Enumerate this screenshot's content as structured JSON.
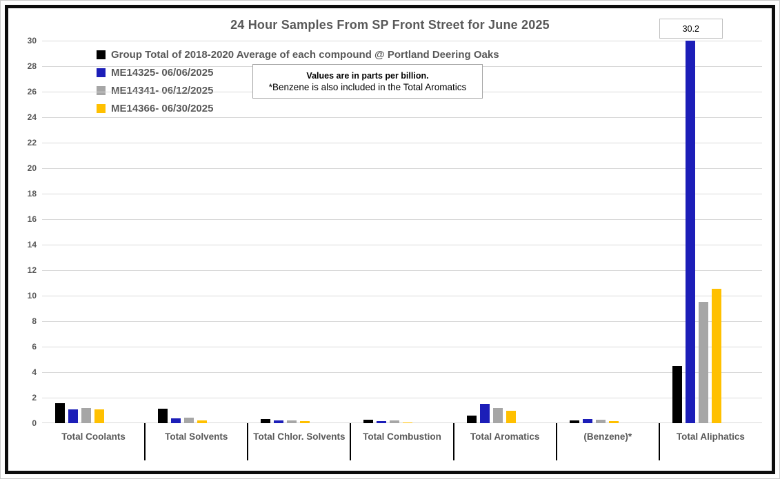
{
  "chart_data": {
    "type": "bar",
    "title": "24 Hour Samples From SP Front Street for June 2025",
    "note_line1": "Values are in parts per billion.",
    "note_line2": "*Benzene is also included in the Total Aromatics",
    "categories": [
      "Total Coolants",
      "Total Solvents",
      "Total Chlor. Solvents",
      "Total Combustion",
      "Total Aromatics",
      "(Benzene)*",
      "Total Aliphatics"
    ],
    "series": [
      {
        "name": "Group Total of 2018-2020 Average of each compound @ Portland Deering Oaks",
        "color": "#000000",
        "values": [
          1.55,
          1.15,
          0.35,
          0.25,
          0.6,
          0.2,
          4.5
        ]
      },
      {
        "name": "ME14325- 06/06/2025",
        "color": "#1c1eb8",
        "values": [
          1.1,
          0.4,
          0.2,
          0.15,
          1.5,
          0.3,
          30.2
        ]
      },
      {
        "name": "ME14341- 06/12/2025",
        "color": "#a6a6a6",
        "values": [
          1.2,
          0.45,
          0.2,
          0.2,
          1.2,
          0.25,
          9.5
        ]
      },
      {
        "name": "ME14366- 06/30/2025",
        "color": "#ffc000",
        "values": [
          1.1,
          0.2,
          0.15,
          0.07,
          0.95,
          0.15,
          10.55
        ]
      }
    ],
    "ylabel": "",
    "xlabel": "",
    "ylim": [
      0,
      30
    ],
    "ytick_step": 2,
    "grid": true,
    "legend_position": "top-left",
    "bars_clipped_at_ymax": true,
    "data_labels": [
      {
        "text": "30.2",
        "category_index": 6,
        "series_index": 1
      }
    ],
    "colors": {
      "title_text": "#595959",
      "axis_text": "#595959",
      "gridline": "#d9d9d9",
      "category_tick": "#000000",
      "frame_border": "#0d0d0d",
      "note_border": "#a6a6a6",
      "data_label_border": "#bfbfbf"
    }
  }
}
